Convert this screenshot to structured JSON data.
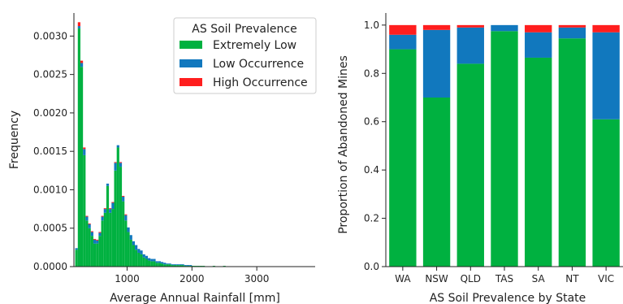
{
  "colors": {
    "extremely_low": "#00B140",
    "low_occurrence": "#1178BE",
    "high_occurrence": "#FF1E1E"
  },
  "chart_data": [
    {
      "type": "histogram",
      "stacked": true,
      "xlabel": "Average Annual Rainfall [mm]",
      "ylabel": "Frequency",
      "xlim": [
        180,
        3900
      ],
      "ylim": [
        0,
        0.0033
      ],
      "xticks": [
        1000,
        2000,
        3000
      ],
      "xtick_labels": [
        "1000",
        "2000",
        "3000"
      ],
      "yticks": [
        0,
        0.0005,
        0.001,
        0.0015,
        0.002,
        0.0025,
        0.003
      ],
      "ytick_labels": [
        "0.0000",
        "0.0005",
        "0.0010",
        "0.0015",
        "0.0020",
        "0.0025",
        "0.0030"
      ],
      "bin_edges_start": 200,
      "bin_width": 40,
      "legend": {
        "title": "AS Soil Prevalence",
        "placement": "upper right",
        "entries": [
          "Extremely Low",
          "Low Occurrence",
          "High Occurrence"
        ]
      },
      "series": [
        {
          "name": "Extremely Low",
          "values": [
            0.00022,
            0.0031,
            0.0026,
            0.00145,
            0.0006,
            0.0005,
            0.0004,
            0.0003,
            0.0003,
            0.0004,
            0.0006,
            0.0007,
            0.00105,
            0.0007,
            0.00075,
            0.00125,
            0.00155,
            0.0013,
            0.00085,
            0.0006,
            0.00045,
            0.00035,
            0.00028,
            0.00022,
            0.00018,
            0.00016,
            0.00012,
            0.0001,
            8e-05,
            7e-05,
            7e-05,
            5e-05,
            5e-05,
            4e-05,
            3e-05,
            3e-05,
            3e-05,
            2e-05,
            2e-05,
            2e-05,
            2e-05,
            2e-05,
            1e-05,
            1e-05,
            1e-05,
            1e-05,
            1e-05,
            1e-05,
            1e-05,
            1e-05,
            0.0,
            0.0,
            0.0,
            1e-05,
            0.0,
            0.0,
            0.0,
            1e-05,
            0.0,
            0.0,
            0.0,
            0.0,
            0.0,
            0.0,
            0.0,
            0.0,
            0.0,
            0.0,
            0.0,
            0.0,
            0.0,
            0.0
          ]
        },
        {
          "name": "Low Occurrence",
          "values": [
            2e-05,
            3e-05,
            5e-05,
            8e-05,
            5e-05,
            5e-05,
            5e-05,
            5e-05,
            4e-05,
            4e-05,
            5e-05,
            5e-05,
            3e-05,
            5e-05,
            8e-05,
            0.0001,
            3e-05,
            5e-05,
            6e-05,
            7e-05,
            6e-05,
            6e-05,
            5e-05,
            6e-05,
            5e-05,
            5e-05,
            4e-05,
            4e-05,
            3e-05,
            3e-05,
            3e-05,
            2e-05,
            2e-05,
            2e-05,
            2e-05,
            1e-05,
            1e-05,
            1e-05,
            1e-05,
            1e-05,
            1e-05,
            1e-05,
            1e-05,
            1e-05,
            1e-05,
            0.0,
            0.0,
            0.0,
            0.0,
            0.0,
            0.0,
            0.0,
            0.0,
            0.0,
            0.0,
            0.0,
            0.0,
            0.0,
            0.0,
            0.0,
            0.0,
            0.0,
            0.0,
            0.0,
            0.0,
            0.0,
            0.0,
            0.0,
            0.0,
            0.0,
            0.0,
            0.0
          ]
        },
        {
          "name": "High Occurrence",
          "values": [
            0.0,
            5e-05,
            3e-05,
            2e-05,
            1e-05,
            1e-05,
            1e-05,
            1e-05,
            1e-05,
            1e-05,
            1e-05,
            1e-05,
            0.0,
            1e-05,
            1e-05,
            1e-05,
            0.0,
            1e-05,
            1e-05,
            1e-05,
            0.0,
            0.0,
            0.0,
            0.0,
            0.0,
            0.0,
            0.0,
            0.0,
            0.0,
            0.0,
            0.0,
            0.0,
            0.0,
            0.0,
            0.0,
            0.0,
            0.0,
            0.0,
            0.0,
            0.0,
            0.0,
            0.0,
            0.0,
            0.0,
            0.0,
            0.0,
            0.0,
            0.0,
            0.0,
            0.0,
            0.0,
            0.0,
            0.0,
            0.0,
            0.0,
            0.0,
            0.0,
            0.0,
            0.0,
            0.0,
            0.0,
            0.0,
            0.0,
            0.0,
            0.0,
            0.0,
            0.0,
            0.0,
            0.0,
            0.0,
            0.0,
            0.0
          ]
        }
      ]
    },
    {
      "type": "bar",
      "stacked": true,
      "xlabel": "AS Soil Prevalence by State",
      "ylabel": "Proportion of Abandoned Mines",
      "ylim": [
        0,
        1.05
      ],
      "yticks": [
        0,
        0.2,
        0.4,
        0.6,
        0.8,
        1.0
      ],
      "ytick_labels": [
        "0.0",
        "0.2",
        "0.4",
        "0.6",
        "0.8",
        "1.0"
      ],
      "categories": [
        "WA",
        "NSW",
        "QLD",
        "TAS",
        "SA",
        "NT",
        "VIC"
      ],
      "series": [
        {
          "name": "Extremely Low",
          "values": [
            0.9,
            0.7,
            0.84,
            0.975,
            0.865,
            0.945,
            0.61
          ]
        },
        {
          "name": "Low Occurrence",
          "values": [
            0.06,
            0.28,
            0.15,
            0.025,
            0.105,
            0.045,
            0.36
          ]
        },
        {
          "name": "High Occurrence",
          "values": [
            0.04,
            0.02,
            0.01,
            0.0,
            0.03,
            0.01,
            0.03
          ]
        }
      ]
    }
  ]
}
